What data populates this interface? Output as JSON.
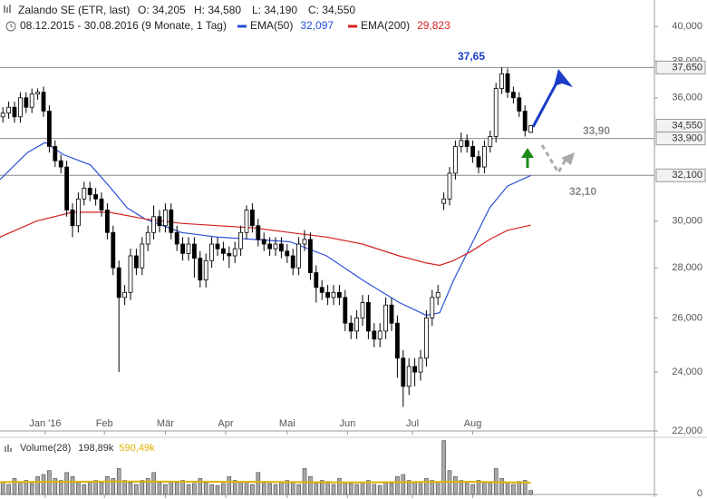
{
  "header": {
    "title": "Zalando SE (ETR, last)",
    "open": "O: 34,205",
    "high": "H: 34,580",
    "low": "L: 34,190",
    "close": "C: 34,550",
    "range": "08.12.2015 - 30.08.2016 (9 Monate, 1 Tag)"
  },
  "chart_data": {
    "type": "candlestick",
    "log_scale": true,
    "xlim": [
      -0.5,
      112
    ],
    "xticks": [
      {
        "value": 7.3,
        "label": "Jan '16"
      },
      {
        "value": 17.5,
        "label": "Feb"
      },
      {
        "value": 28,
        "label": "Mär"
      },
      {
        "value": 38.4,
        "label": "Apr"
      },
      {
        "value": 49,
        "label": "Mai"
      },
      {
        "value": 59.4,
        "label": "Jun"
      },
      {
        "value": 70.6,
        "label": "Jul"
      },
      {
        "value": 81,
        "label": "Aug"
      }
    ],
    "ylim": [
      22,
      41.6
    ],
    "yticks": [
      {
        "value": 40,
        "label": "40,000"
      },
      {
        "value": 38,
        "label": "38,000"
      },
      {
        "value": 36,
        "label": "36,000"
      },
      {
        "value": 30,
        "label": "30,000"
      },
      {
        "value": 28,
        "label": "28,000"
      },
      {
        "value": 26,
        "label": "26,000"
      },
      {
        "value": 24,
        "label": "24,000"
      },
      {
        "value": 22,
        "label": "22,000"
      }
    ],
    "up_color": "#ffffff",
    "down_color": "#000000",
    "open": [
      35.0,
      35.2,
      35.5,
      35.0,
      36.0,
      35.5,
      36.2,
      36.3,
      35.3,
      33.5,
      32.8,
      32.5,
      30.5,
      29.8,
      31.0,
      31.5,
      31.2,
      31.0,
      30.5,
      29.5,
      28.0,
      26.8,
      27.0,
      28.5,
      28.0,
      29.0,
      29.5,
      30.2,
      29.8,
      30.5,
      29.5,
      29.0,
      28.6,
      29.0,
      28.4,
      27.5,
      28.3,
      29.0,
      28.8,
      28.6,
      28.5,
      28.8,
      29.5,
      30.5,
      29.8,
      29.2,
      29.0,
      28.8,
      29.0,
      28.7,
      28.5,
      28.0,
      29.0,
      29.2,
      27.8,
      27.2,
      27.0,
      26.8,
      27.0,
      26.8,
      25.8,
      25.5,
      26.0,
      26.6,
      25.5,
      25.2,
      25.5,
      26.5,
      25.8,
      24.5,
      23.5,
      24.2,
      24.0,
      24.5,
      26.0,
      26.8,
      30.8,
      31.0,
      32.2,
      33.5,
      33.8,
      33.5,
      33.0,
      32.5,
      33.5,
      34.0,
      36.5,
      37.3,
      36.3,
      36.0,
      35.3,
      34.205
    ],
    "high": [
      35.5,
      35.8,
      35.8,
      36.3,
      36.3,
      36.5,
      36.5,
      36.6,
      35.6,
      33.8,
      33.1,
      32.8,
      30.8,
      31.3,
      31.8,
      31.8,
      31.5,
      31.3,
      30.8,
      29.8,
      28.3,
      27.3,
      28.8,
      28.8,
      29.3,
      29.8,
      30.7,
      30.5,
      30.8,
      30.8,
      29.8,
      29.3,
      29.3,
      29.3,
      28.7,
      28.6,
      29.3,
      29.3,
      29.1,
      28.9,
      29.1,
      29.8,
      30.7,
      30.8,
      30.1,
      29.5,
      29.3,
      29.3,
      29.3,
      29.0,
      28.8,
      29.3,
      29.6,
      29.5,
      28.1,
      27.5,
      27.3,
      27.3,
      27.3,
      27.1,
      26.1,
      26.3,
      26.9,
      26.9,
      25.8,
      25.8,
      26.8,
      26.8,
      26.1,
      24.8,
      24.5,
      24.5,
      24.8,
      26.3,
      27.1,
      27.3,
      31.3,
      32.5,
      33.8,
      34.2,
      34.1,
      33.8,
      33.3,
      33.8,
      34.3,
      36.8,
      37.65,
      37.6,
      36.6,
      36.3,
      35.6,
      34.58
    ],
    "low": [
      34.7,
      34.9,
      34.7,
      34.7,
      35.2,
      35.2,
      35.9,
      35.0,
      33.2,
      32.5,
      32.2,
      30.2,
      29.3,
      29.5,
      30.7,
      30.9,
      30.7,
      30.2,
      29.2,
      27.7,
      24.0,
      26.5,
      26.7,
      27.7,
      27.7,
      28.7,
      29.2,
      29.5,
      29.5,
      29.2,
      28.7,
      28.3,
      28.3,
      27.6,
      27.2,
      27.2,
      28.0,
      28.5,
      28.3,
      28.0,
      28.2,
      28.5,
      29.2,
      29.5,
      28.9,
      28.7,
      28.5,
      28.5,
      28.4,
      28.2,
      27.7,
      27.7,
      28.7,
      27.5,
      26.6,
      26.7,
      26.5,
      26.5,
      26.5,
      25.5,
      25.2,
      25.2,
      25.7,
      25.2,
      24.9,
      24.9,
      25.2,
      25.5,
      23.8,
      22.8,
      23.2,
      23.5,
      23.7,
      24.2,
      25.7,
      26.5,
      30.5,
      30.7,
      31.9,
      33.2,
      33.2,
      32.7,
      32.2,
      32.2,
      33.2,
      33.7,
      36.2,
      36.0,
      35.7,
      35.0,
      34.0,
      34.19
    ],
    "close": [
      35.2,
      35.5,
      35.0,
      36.0,
      35.5,
      36.2,
      36.3,
      35.3,
      33.5,
      32.8,
      32.5,
      30.5,
      29.8,
      31.0,
      31.5,
      31.2,
      31.0,
      30.5,
      29.5,
      28.0,
      26.8,
      27.0,
      28.5,
      28.0,
      29.0,
      29.5,
      30.2,
      29.8,
      30.5,
      29.5,
      29.0,
      28.6,
      29.0,
      28.4,
      27.5,
      28.3,
      29.0,
      28.8,
      28.6,
      28.5,
      28.8,
      29.5,
      30.5,
      29.8,
      29.2,
      29.0,
      28.8,
      29.0,
      28.7,
      28.5,
      28.0,
      29.0,
      29.2,
      27.8,
      27.2,
      27.0,
      26.8,
      27.0,
      26.8,
      25.8,
      25.5,
      26.0,
      26.6,
      25.5,
      25.2,
      25.5,
      26.5,
      25.8,
      24.5,
      23.5,
      24.2,
      24.0,
      24.5,
      26.0,
      26.8,
      27.0,
      31.0,
      32.2,
      33.5,
      33.8,
      33.5,
      33.0,
      32.5,
      33.5,
      34.0,
      36.5,
      37.3,
      36.3,
      36.0,
      35.3,
      34.3,
      34.55
    ],
    "indicators": [
      {
        "name": "EMA(50)",
        "color": "#2a4fd8",
        "last_label": "32,097",
        "x": [
          -0.5,
          4.2,
          7.3,
          10.4,
          15.1,
          18.3,
          21.4,
          24.5,
          30.8,
          37,
          43.3,
          49.5,
          55.8,
          62,
          68.3,
          73,
          75.3,
          77.7,
          80.8,
          83.9,
          87,
          91
        ],
        "values": [
          31.9,
          33.2,
          33.7,
          33.1,
          32.6,
          31.6,
          30.6,
          30.1,
          29.5,
          29.3,
          29.2,
          29.1,
          28.5,
          27.5,
          26.6,
          26.1,
          26.2,
          27.5,
          29.0,
          30.6,
          31.6,
          32.097
        ]
      },
      {
        "name": "EMA(200)",
        "color": "#d42020",
        "last_label": "29,823",
        "x": [
          -0.5,
          5.8,
          12,
          18.3,
          24.5,
          30.8,
          37,
          43.3,
          49.5,
          55.8,
          62,
          68.3,
          73,
          75.3,
          77.7,
          80.8,
          83.9,
          87,
          91
        ],
        "values": [
          29.3,
          30.0,
          30.4,
          30.4,
          30.1,
          29.9,
          29.8,
          29.7,
          29.5,
          29.3,
          29.0,
          28.5,
          28.2,
          28.1,
          28.3,
          28.7,
          29.2,
          29.6,
          29.823
        ]
      }
    ],
    "levels": [
      {
        "value": 37.65,
        "label": "37,650",
        "note": "37,65"
      },
      {
        "value": 33.9,
        "label": "33,900",
        "note": "33,90"
      },
      {
        "value": 32.1,
        "label": "32,100",
        "note": "32,10"
      }
    ],
    "last_price": {
      "value": 34.55,
      "label": "34,550"
    },
    "volume": {
      "name": "Volume(28)",
      "last_label": "198,89k",
      "color": "#a8a8a8",
      "ylim": [
        0,
        2050
      ],
      "yticks": [
        0
      ],
      "values": [
        600,
        500,
        800,
        650,
        700,
        550,
        900,
        1000,
        1200,
        800,
        700,
        1100,
        900,
        600,
        500,
        650,
        700,
        600,
        900,
        800,
        1300,
        700,
        600,
        500,
        700,
        800,
        1100,
        600,
        500,
        650,
        600,
        700,
        500,
        550,
        800,
        600,
        500,
        450,
        550,
        900,
        700,
        600,
        650,
        500,
        1100,
        600,
        550,
        500,
        600,
        700,
        650,
        500,
        1300,
        900,
        600,
        700,
        650,
        500,
        800,
        600,
        550,
        500,
        600,
        700,
        500,
        450,
        600,
        550,
        900,
        1000,
        700,
        600,
        550,
        800,
        700,
        650,
        2700,
        1200,
        900,
        700,
        600,
        500,
        700,
        650,
        600,
        1300,
        800,
        600,
        500,
        650,
        700,
        198.89
      ],
      "average": {
        "label": "590,49k",
        "color": "#e0b400",
        "x": [
          -0.5,
          20,
          40,
          60,
          80,
          91
        ],
        "values": [
          620,
          650,
          640,
          600,
          640,
          590.49
        ]
      }
    }
  }
}
